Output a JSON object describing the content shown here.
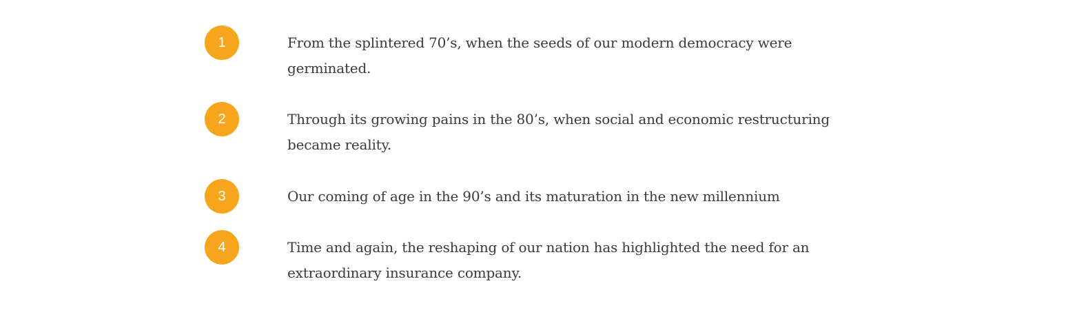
{
  "steps": [
    {
      "number": "1",
      "text": "From the splintered 70’s, when the seeds of our modern democracy were germinated."
    },
    {
      "number": "2",
      "text": "Through its growing pains in the 80’s, when social and economic restructuring became reality."
    },
    {
      "number": "3",
      "text": "Our coming of age in the 90’s and its maturation in the new millennium"
    },
    {
      "number": "4",
      "text": "Time and again, the reshaping of our nation has highlighted the need for an extraordinary insurance company."
    }
  ],
  "colors": {
    "badge": "#f7a51c",
    "badge_text": "#ffffff",
    "body_text": "#3a3a3a",
    "background": "#ffffff"
  }
}
